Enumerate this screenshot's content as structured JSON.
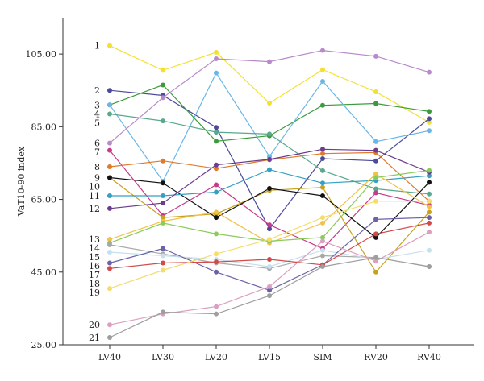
{
  "chart_data": {
    "type": "line",
    "ylabel": "VaT10-90 index",
    "xlabel": "",
    "ylim": [
      25,
      115
    ],
    "yticks": [
      25.0,
      45.0,
      65.0,
      85.0,
      105.0
    ],
    "ytick_labels": [
      "25.00",
      "45.00",
      "65.00",
      "85.00",
      "105.00"
    ],
    "categories": [
      "LV40",
      "LV30",
      "LV20",
      "LV15",
      "SIM",
      "RV20",
      "RV40"
    ],
    "grid": false,
    "legend": "none",
    "series": [
      {
        "label": "1",
        "color": "#f2e12f",
        "values": [
          107.3,
          100.5,
          105.5,
          91.5,
          100.7,
          94.6,
          86.2
        ]
      },
      {
        "label": "2",
        "color": "#4b4b9a",
        "values": [
          95.0,
          93.6,
          84.8,
          56.9,
          76.2,
          75.6,
          87.2
        ]
      },
      {
        "label": "3",
        "color": "#3b9a3b",
        "values": [
          91.0,
          96.5,
          81.0,
          82.5,
          90.9,
          91.4,
          89.2
        ]
      },
      {
        "label": "4",
        "color": "#6bb6e6",
        "values": [
          91.0,
          70.0,
          99.8,
          76.8,
          97.5,
          80.9,
          83.9
        ]
      },
      {
        "label": "5",
        "color": "#5aa88f",
        "values": [
          88.5,
          86.6,
          83.5,
          83.0,
          72.9,
          67.9,
          66.5
        ]
      },
      {
        "label": "6",
        "color": "#b88ac9",
        "values": [
          80.5,
          93.0,
          103.7,
          102.9,
          106.0,
          104.4,
          100.0
        ]
      },
      {
        "label": "7",
        "color": "#c83a8a",
        "values": [
          78.5,
          60.5,
          69.0,
          58.0,
          51.5,
          66.8,
          63.4
        ]
      },
      {
        "label": "8",
        "color": "#de7b2c",
        "values": [
          74.0,
          75.6,
          73.5,
          75.9,
          77.6,
          77.9,
          64.5
        ]
      },
      {
        "label": "9",
        "color": "#c9a11c",
        "values": [
          71.0,
          60.0,
          61.0,
          67.5,
          68.3,
          45.0,
          61.5
        ]
      },
      {
        "label": "10",
        "color": "#111111",
        "values": [
          71.0,
          69.5,
          60.0,
          68.0,
          66.0,
          54.5,
          69.7
        ]
      },
      {
        "label": "11",
        "color": "#36a0c2",
        "values": [
          66.0,
          66.0,
          67.0,
          73.2,
          69.5,
          70.2,
          71.5
        ]
      },
      {
        "label": "12",
        "color": "#6d3c8e",
        "values": [
          62.5,
          64.0,
          74.5,
          76.0,
          78.8,
          78.5,
          72.5
        ]
      },
      {
        "label": "13",
        "color": "#f0c24a",
        "values": [
          54.0,
          59.0,
          61.5,
          53.0,
          58.5,
          72.0,
          63.0
        ]
      },
      {
        "label": "14",
        "color": "#8acb5a",
        "values": [
          53.0,
          58.5,
          55.5,
          53.5,
          54.5,
          71.0,
          73.0
        ]
      },
      {
        "label": "15",
        "color": "#a8a8a8",
        "values": [
          52.5,
          50.0,
          47.5,
          46.0,
          49.5,
          49.0,
          46.5
        ]
      },
      {
        "label": "16",
        "color": "#c6e0ee",
        "values": [
          50.5,
          49.5,
          48.5,
          46.5,
          51.0,
          48.5,
          51.0
        ]
      },
      {
        "label": "17",
        "color": "#6a63a8",
        "values": [
          47.5,
          51.5,
          45.0,
          40.0,
          47.0,
          59.5,
          60.0
        ]
      },
      {
        "label": "18",
        "color": "#d24a4a",
        "values": [
          46.0,
          47.5,
          47.8,
          48.5,
          47.0,
          55.5,
          58.5
        ]
      },
      {
        "label": "19",
        "color": "#f6dc6a",
        "values": [
          40.5,
          45.5,
          50.0,
          54.0,
          60.0,
          64.5,
          64.5
        ]
      },
      {
        "label": "20",
        "color": "#dba0c0",
        "values": [
          30.5,
          33.5,
          35.5,
          41.0,
          53.5,
          48.0,
          56.0
        ]
      },
      {
        "label": "21",
        "color": "#9e9e9e",
        "values": [
          27.0,
          34.0,
          33.5,
          38.5,
          46.5,
          49.0,
          46.5
        ]
      }
    ]
  }
}
